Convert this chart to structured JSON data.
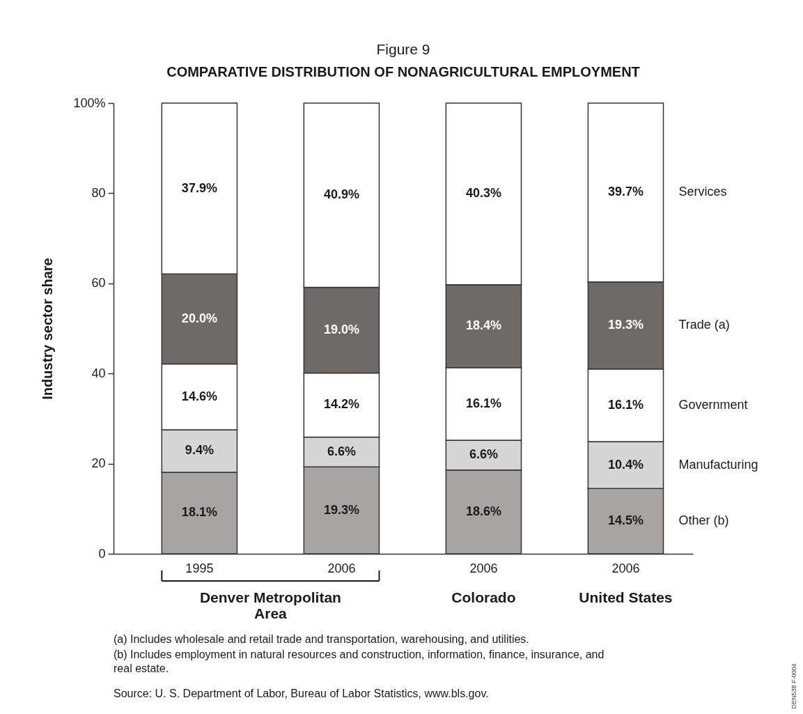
{
  "chart_data": {
    "type": "bar",
    "title": "Figure 9",
    "subtitle": "COMPARATIVE DISTRIBUTION OF NONAGRICULTURAL EMPLOYMENT",
    "ylabel": "Industry sector share",
    "categories": [
      "1995",
      "2006",
      "2006",
      "2006"
    ],
    "stacked": true,
    "series": [
      {
        "name": "Other (b)",
        "color": "#a7a4a4",
        "values": [
          18.1,
          19.3,
          18.6,
          14.5
        ],
        "value_labels": [
          "18.1%",
          "19.3%",
          "18.6%",
          "14.5%"
        ]
      },
      {
        "name": "Manufacturing",
        "color": "#d6d6d6",
        "values": [
          9.4,
          6.6,
          6.6,
          10.4
        ],
        "value_labels": [
          "9.4%",
          "6.6%",
          "6.6%",
          "10.4%"
        ]
      },
      {
        "name": "Government",
        "color": "#ffffff",
        "values": [
          14.6,
          14.2,
          16.1,
          16.1
        ],
        "value_labels": [
          "14.6%",
          "14.2%",
          "16.1%",
          "16.1%"
        ]
      },
      {
        "name": "Trade (a)",
        "color": "#6e6a68",
        "values": [
          20.0,
          19.0,
          18.4,
          19.3
        ],
        "value_labels": [
          "20.0%",
          "19.0%",
          "18.4%",
          "19.3%"
        ]
      },
      {
        "name": "Services",
        "color": "#ffffff",
        "values": [
          37.9,
          40.9,
          40.3,
          39.7
        ],
        "value_labels": [
          "37.9%",
          "40.9%",
          "40.3%",
          "39.7%"
        ]
      }
    ],
    "ylim": [
      0,
      100
    ],
    "yticks": [
      0,
      20,
      40,
      60,
      80,
      {
        "value": 100,
        "label": "100%"
      }
    ],
    "grid": false,
    "annotations": [
      "Denver Metropolitan Area",
      "Colorado",
      "United States",
      "(a) Includes wholesale and retail trade and transportation, warehousing, and utilities.",
      "(b) Includes employment in natural resources and construction, information, finance, insurance, and real estate.",
      "Source: U. S. Department of Labor, Bureau of Labor Statistics, www.bls.gov.",
      "DEN538 F-0004"
    ]
  }
}
